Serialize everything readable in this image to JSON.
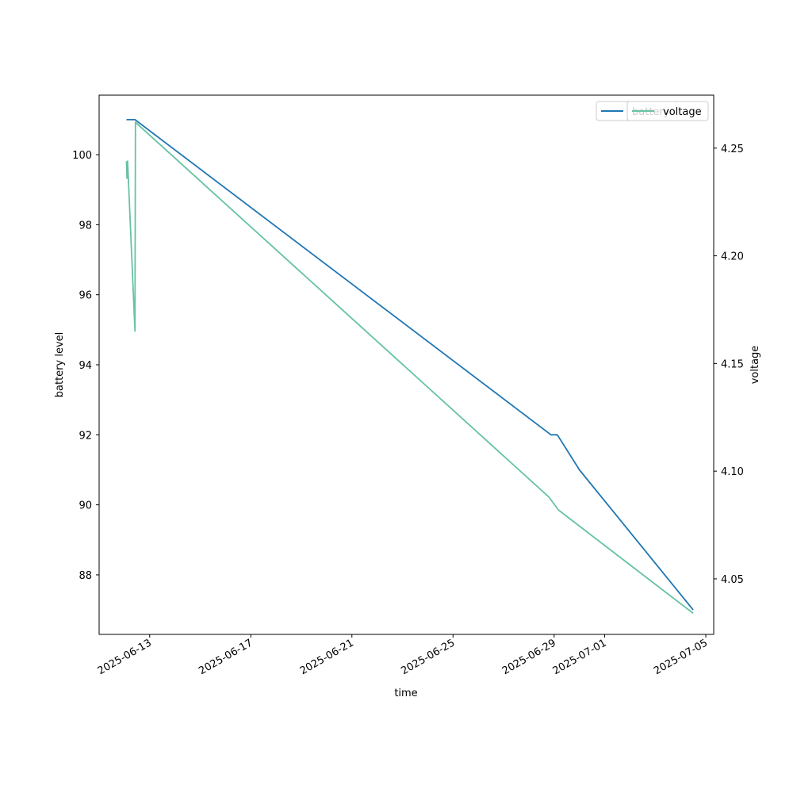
{
  "chart_data": {
    "type": "line",
    "xlabel": "time",
    "ylabel": "battery level",
    "y2label": "voltage",
    "xlim": [
      "2025-06-11T00:00",
      "2025-07-05T07:30"
    ],
    "ylim": [
      86.3,
      101.7
    ],
    "y2lim": [
      4.0242,
      4.2746
    ],
    "xticks": [
      "2025-06-13",
      "2025-06-17",
      "2025-06-21",
      "2025-06-25",
      "2025-06-29",
      "2025-07-01",
      "2025-07-05"
    ],
    "yticks": [
      88,
      90,
      92,
      94,
      96,
      98,
      100
    ],
    "y2ticks": [
      "4.05",
      "4.10",
      "4.15",
      "4.20",
      "4.25"
    ],
    "legend_position": "top-right",
    "grid": false,
    "series": [
      {
        "name": "battery",
        "axis": "left",
        "color": "#1f77b4",
        "points": [
          [
            "2025-06-12T02:00",
            101
          ],
          [
            "2025-06-12T06:00",
            101
          ],
          [
            "2025-06-12T10:00",
            101
          ],
          [
            "2025-06-28T21:00",
            92
          ],
          [
            "2025-06-29T03:00",
            92
          ],
          [
            "2025-06-30T00:00",
            91
          ],
          [
            "2025-07-04T12:00",
            87
          ]
        ]
      },
      {
        "name": "voltage",
        "axis": "right",
        "color": "#66c2a5",
        "points": [
          [
            "2025-06-12T02:00",
            4.244
          ],
          [
            "2025-06-12T02:30",
            4.236
          ],
          [
            "2025-06-12T03:00",
            4.244
          ],
          [
            "2025-06-12T10:00",
            4.165
          ],
          [
            "2025-06-12T10:30",
            4.262
          ],
          [
            "2025-06-28T19:00",
            4.088
          ],
          [
            "2025-06-29T04:00",
            4.082
          ],
          [
            "2025-06-30T04:00",
            4.073
          ],
          [
            "2025-07-04T12:00",
            4.034
          ]
        ]
      }
    ]
  }
}
